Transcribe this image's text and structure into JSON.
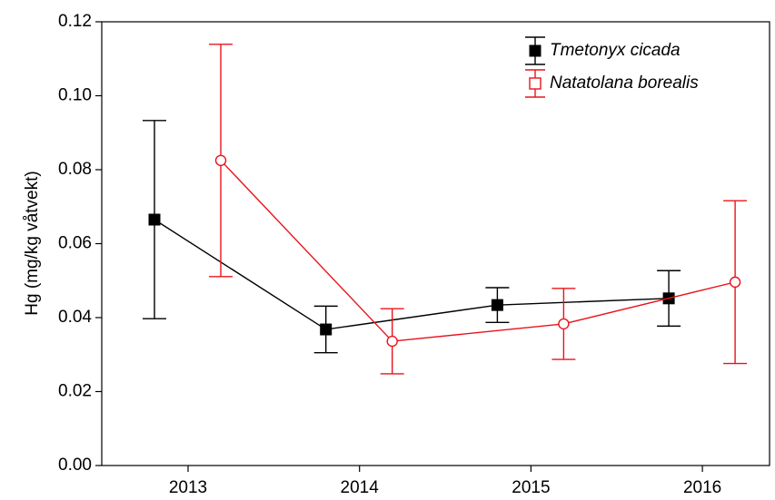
{
  "chart_data": {
    "type": "line",
    "y_label": "Hg (mg/kg våtvekt)",
    "categories": [
      "2013",
      "2014",
      "2015",
      "2016"
    ],
    "series": [
      {
        "name": "Tmetonyx cicada",
        "color": "#000000",
        "marker": "filled-square",
        "values": [
          0.0665,
          0.0368,
          0.0434,
          0.0452
        ],
        "errors": [
          0.0268,
          0.0063,
          0.0047,
          0.0075
        ]
      },
      {
        "name": "Natatolana borealis",
        "color": "#e8141c",
        "marker": "open-circle",
        "values": [
          0.0825,
          0.0336,
          0.0383,
          0.0496
        ],
        "errors": [
          0.0314,
          0.0088,
          0.0096,
          0.022
        ]
      }
    ],
    "ylim": [
      0,
      0.12
    ],
    "yticks": [
      {
        "value": 0,
        "label": "0.00"
      },
      {
        "value": 0.02,
        "label": "0.02"
      },
      {
        "value": 0.04,
        "label": "0.04"
      },
      {
        "value": 0.06,
        "label": "0.06"
      },
      {
        "value": 0.08,
        "label": "0.08"
      },
      {
        "value": 0.1,
        "label": "0.10"
      },
      {
        "value": 0.12,
        "label": "0.12"
      }
    ],
    "legend": "upper right",
    "grid": false
  }
}
